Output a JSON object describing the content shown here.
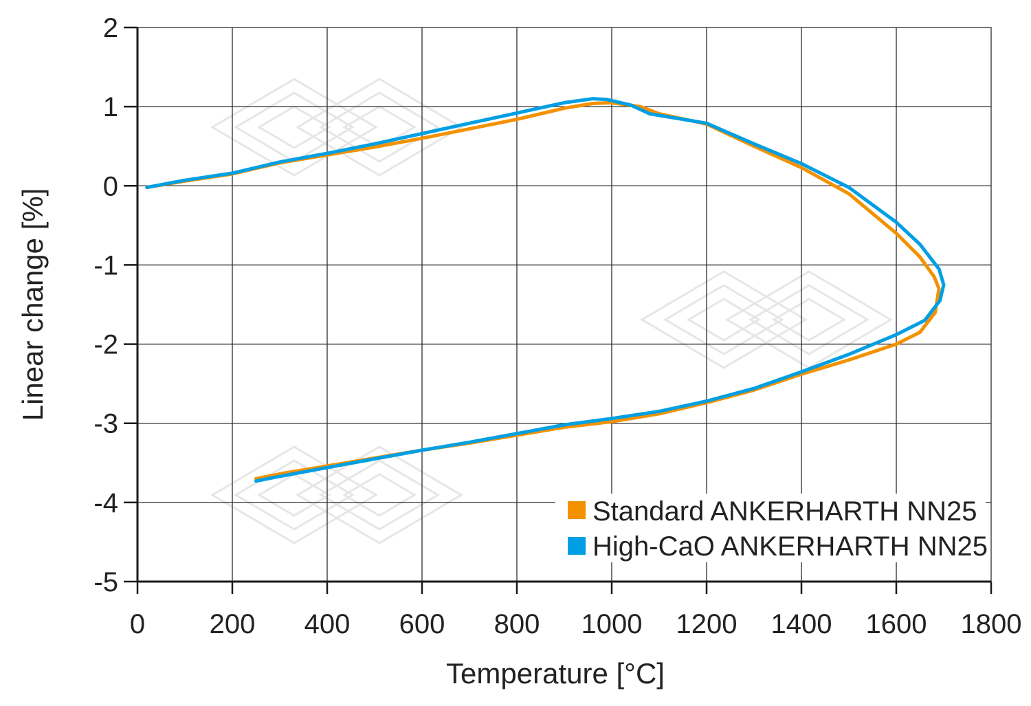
{
  "chart_data": {
    "type": "line",
    "title": "",
    "xlabel": "Temperature [°C]",
    "ylabel": "Linear change [%]",
    "xlim": [
      0,
      1800
    ],
    "ylim": [
      -5,
      2
    ],
    "xticks": [
      0,
      200,
      400,
      600,
      800,
      1000,
      1200,
      1400,
      1600,
      1800
    ],
    "yticks": [
      2,
      1,
      0,
      -1,
      -2,
      -3,
      -4,
      -5
    ],
    "grid": true,
    "legend_position": "bottom-right",
    "series": [
      {
        "name": "Standard ANKERHARTH NN25",
        "color": "#f39200",
        "points": [
          [
            20,
            -0.02
          ],
          [
            100,
            0.06
          ],
          [
            200,
            0.15
          ],
          [
            300,
            0.29
          ],
          [
            400,
            0.39
          ],
          [
            500,
            0.49
          ],
          [
            600,
            0.6
          ],
          [
            700,
            0.72
          ],
          [
            800,
            0.84
          ],
          [
            900,
            0.98
          ],
          [
            960,
            1.04
          ],
          [
            1000,
            1.05
          ],
          [
            1060,
            1.0
          ],
          [
            1100,
            0.91
          ],
          [
            1200,
            0.78
          ],
          [
            1300,
            0.5
          ],
          [
            1400,
            0.23
          ],
          [
            1500,
            -0.1
          ],
          [
            1600,
            -0.6
          ],
          [
            1650,
            -0.9
          ],
          [
            1680,
            -1.15
          ],
          [
            1690,
            -1.3
          ],
          [
            1682,
            -1.6
          ],
          [
            1650,
            -1.85
          ],
          [
            1600,
            -2.0
          ],
          [
            1500,
            -2.2
          ],
          [
            1400,
            -2.38
          ],
          [
            1300,
            -2.58
          ],
          [
            1200,
            -2.74
          ],
          [
            1100,
            -2.88
          ],
          [
            1000,
            -2.98
          ],
          [
            900,
            -3.05
          ],
          [
            800,
            -3.15
          ],
          [
            700,
            -3.25
          ],
          [
            600,
            -3.34
          ],
          [
            500,
            -3.44
          ],
          [
            400,
            -3.54
          ],
          [
            300,
            -3.64
          ],
          [
            250,
            -3.7
          ]
        ]
      },
      {
        "name": "High-CaO ANKERHARTH NN25",
        "color": "#009fe3",
        "points": [
          [
            20,
            -0.02
          ],
          [
            100,
            0.07
          ],
          [
            200,
            0.16
          ],
          [
            300,
            0.3
          ],
          [
            400,
            0.41
          ],
          [
            500,
            0.53
          ],
          [
            600,
            0.66
          ],
          [
            700,
            0.79
          ],
          [
            800,
            0.92
          ],
          [
            900,
            1.05
          ],
          [
            960,
            1.1
          ],
          [
            990,
            1.09
          ],
          [
            1040,
            1.02
          ],
          [
            1080,
            0.91
          ],
          [
            1200,
            0.79
          ],
          [
            1300,
            0.53
          ],
          [
            1400,
            0.28
          ],
          [
            1500,
            -0.02
          ],
          [
            1600,
            -0.46
          ],
          [
            1650,
            -0.74
          ],
          [
            1690,
            -1.05
          ],
          [
            1700,
            -1.25
          ],
          [
            1692,
            -1.45
          ],
          [
            1660,
            -1.7
          ],
          [
            1600,
            -1.88
          ],
          [
            1500,
            -2.13
          ],
          [
            1400,
            -2.35
          ],
          [
            1300,
            -2.56
          ],
          [
            1200,
            -2.72
          ],
          [
            1100,
            -2.85
          ],
          [
            1000,
            -2.94
          ],
          [
            900,
            -3.02
          ],
          [
            800,
            -3.13
          ],
          [
            700,
            -3.24
          ],
          [
            600,
            -3.34
          ],
          [
            500,
            -3.45
          ],
          [
            400,
            -3.56
          ],
          [
            300,
            -3.67
          ],
          [
            250,
            -3.73
          ]
        ]
      }
    ]
  }
}
